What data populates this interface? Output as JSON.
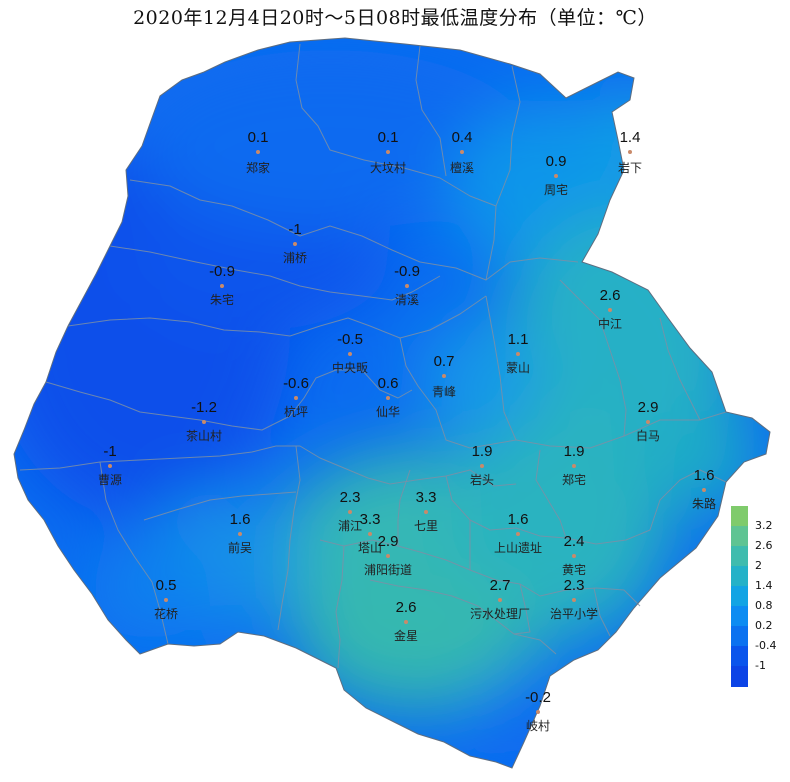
{
  "title": "2020年12月4日20时～5日08时最低温度分布（单位：℃）",
  "stations": [
    {
      "name": "郑家",
      "value": "0.1"
    },
    {
      "name": "大坟村",
      "value": "0.1"
    },
    {
      "name": "檀溪",
      "value": "0.4"
    },
    {
      "name": "周宅",
      "value": "0.9"
    },
    {
      "name": "岩下",
      "value": "1.4"
    },
    {
      "name": "浦桥",
      "value": "-1"
    },
    {
      "name": "朱宅",
      "value": "-0.9"
    },
    {
      "name": "清溪",
      "value": "-0.9"
    },
    {
      "name": "中江",
      "value": "2.6"
    },
    {
      "name": "中央畈",
      "value": "-0.5"
    },
    {
      "name": "蒙山",
      "value": "1.1"
    },
    {
      "name": "杭坪",
      "value": "-0.6"
    },
    {
      "name": "仙华",
      "value": "0.6"
    },
    {
      "name": "青峰",
      "value": "0.7"
    },
    {
      "name": "茶山村",
      "value": "-1.2"
    },
    {
      "name": "白马",
      "value": "2.9"
    },
    {
      "name": "曹源",
      "value": "-1"
    },
    {
      "name": "岩头",
      "value": "1.9"
    },
    {
      "name": "郑宅",
      "value": "1.9"
    },
    {
      "name": "朱路",
      "value": "1.6"
    },
    {
      "name": "浦江",
      "value": "2.3"
    },
    {
      "name": "七里",
      "value": "3.3"
    },
    {
      "name": "塔山",
      "value": "3.3"
    },
    {
      "name": "前吴",
      "value": "1.6"
    },
    {
      "name": "上山遗址",
      "value": "1.6"
    },
    {
      "name": "浦阳街道",
      "value": "2.9"
    },
    {
      "name": "黄宅",
      "value": "2.4"
    },
    {
      "name": "污水处理厂",
      "value": "2.7"
    },
    {
      "name": "治平小学",
      "value": "2.3"
    },
    {
      "name": "花桥",
      "value": "0.5"
    },
    {
      "name": "金星",
      "value": "2.6"
    },
    {
      "name": "岐村",
      "value": "-0.2"
    }
  ],
  "legend": {
    "labels": [
      "3.2",
      "2.6",
      "2",
      "1.4",
      "0.8",
      "0.2",
      "-0.4",
      "-1"
    ],
    "colors": [
      "#7fcb6c",
      "#5fc493",
      "#3fbcae",
      "#24b2c8",
      "#12a4e4",
      "#0d8cf2",
      "#0b72f0",
      "#0a55ec",
      "#0c44e6"
    ]
  }
}
